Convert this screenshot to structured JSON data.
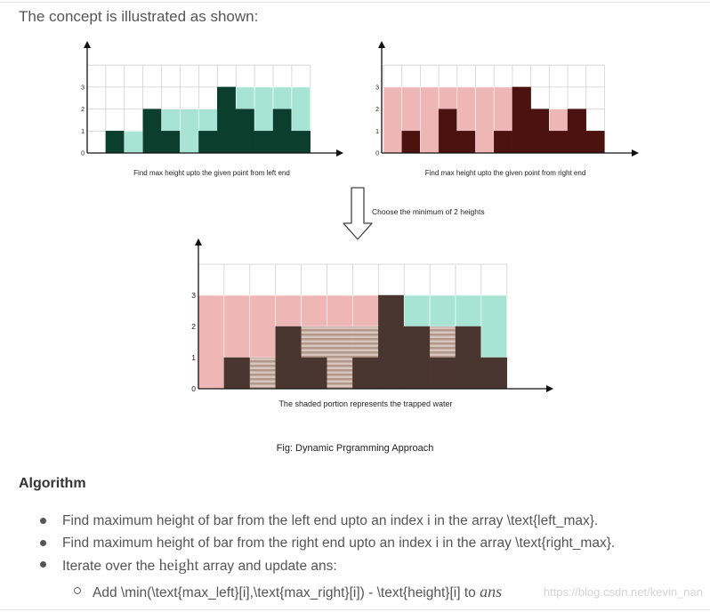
{
  "intro": "The concept is illustrated as shown:",
  "diagram": {
    "left_caption": "Find max height upto the given point from left end",
    "right_caption": "Find max height upto the given point from right end",
    "arrow_label": "Choose the minimum of 2 heights",
    "bottom_caption": "The shaded portion represents the trapped water",
    "y_ticks": [
      "0",
      "1",
      "2",
      "3"
    ],
    "heights": [
      0,
      1,
      0,
      2,
      1,
      0,
      1,
      3,
      2,
      1,
      2,
      1
    ],
    "left_max": [
      0,
      1,
      1,
      2,
      2,
      2,
      2,
      3,
      3,
      3,
      3,
      3
    ],
    "right_max": [
      3,
      3,
      3,
      3,
      3,
      3,
      3,
      3,
      2,
      2,
      2,
      1
    ],
    "colors": {
      "left_bar": "#0b3e2d",
      "left_fill": "#a8e4d3",
      "right_bar": "#4b1210",
      "right_fill": "#efb6b6",
      "bottom_bar": "#4a3630",
      "water_stripe_a": "#b2988b",
      "water_stripe_b": "#d8c6bd",
      "grid": "#d0d0d0"
    }
  },
  "fig_caption": "Fig: Dynamic Prgramming Approach",
  "algorithm": {
    "title": "Algorithm",
    "items": [
      "Find maximum height of bar from the left end upto an index i in the array \\text{left_max}.",
      "Find maximum height of bar from the right end upto an index i in the array \\text{right_max}."
    ],
    "item3_prefix": "Iterate over the ",
    "item3_math": "height",
    "item3_suffix": " array and update ans:",
    "sub_item": "Add \\min(\\text{max_left}[i],\\text{max_right}[i]) - \\text{height}[i] to ",
    "sub_item_math": "ans"
  },
  "watermark": "https://blog.csdn.net/kevin_nan"
}
